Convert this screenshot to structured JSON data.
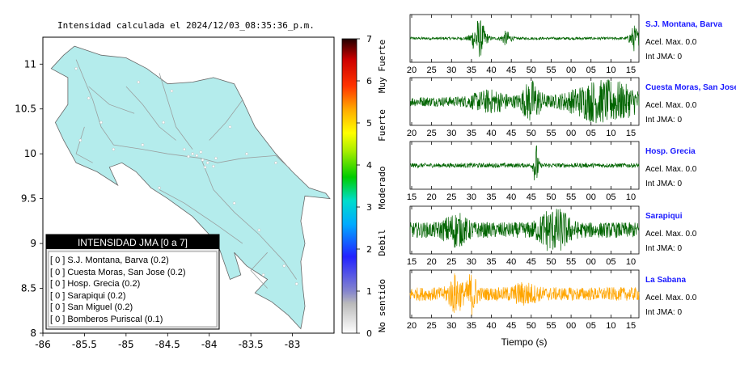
{
  "map": {
    "title": "Intensidad calculada el 2024/12/03_08:35:36_p.m.",
    "x_ticks": [
      "-86",
      "-85.5",
      "-85",
      "-84.5",
      "-84",
      "-83.5",
      "-83"
    ],
    "y_ticks": [
      "11",
      "10.5",
      "10",
      "9.5",
      "9",
      "8.5",
      "8"
    ],
    "xlim": [
      -86,
      -82.5
    ],
    "ylim": [
      8,
      11.3
    ],
    "land_color": "#b4ecec",
    "legend": {
      "title": "INTENSIDAD JMA [0 a 7]",
      "items": [
        {
          "text": "[ 0 ]  S.J. Montana, Barva (0.2)"
        },
        {
          "text": "[ 0 ]  Cuesta Moras, San Jose (0.2)"
        },
        {
          "text": "[ 0 ]  Hosp. Grecia (0.2)"
        },
        {
          "text": "[ 0 ]  Sarapiqui (0.2)"
        },
        {
          "text": "[ 0 ]  San Miguel (0.2)"
        },
        {
          "text": "[ 0 ]  Bomberos Puriscal (0.1)"
        }
      ]
    }
  },
  "colorbar": {
    "ticks": [
      "7",
      "6",
      "5",
      "4",
      "3",
      "2",
      "1",
      "0"
    ],
    "categories": [
      "Muy Fuerte",
      "Fuerte",
      "Moderado",
      "Debil",
      "No sentido"
    ]
  },
  "chart_data": [
    {
      "type": "line",
      "station": "S.J. Montana, Barva",
      "acel": "Acel. Max. 0.0",
      "int": "Int JMA: 0",
      "color": "#006400",
      "x_ticks": [
        "20",
        "25",
        "30",
        "35",
        "40",
        "45",
        "50",
        "55",
        "00",
        "05",
        "10",
        "15"
      ],
      "bursts": [
        {
          "at": 0.3,
          "amp": 0.85,
          "width": 0.03
        },
        {
          "at": 0.42,
          "amp": 0.3,
          "width": 0.02
        },
        {
          "at": 0.98,
          "amp": 0.55,
          "width": 0.02
        }
      ],
      "noise": 0.06
    },
    {
      "type": "line",
      "station": "Cuesta Moras, San Jose",
      "acel": "Acel. Max. 0.0",
      "int": "Int JMA: 0",
      "color": "#006400",
      "x_ticks": [
        "20",
        "25",
        "30",
        "35",
        "40",
        "45",
        "50",
        "55",
        "00",
        "05",
        "10",
        "15"
      ],
      "bursts": [
        {
          "at": 0.53,
          "amp": 0.8,
          "width": 0.04
        },
        {
          "at": 0.85,
          "amp": 0.85,
          "width": 0.15
        },
        {
          "at": 0.35,
          "amp": 0.35,
          "width": 0.08
        }
      ],
      "noise": 0.22
    },
    {
      "type": "line",
      "station": "Hosp. Grecia",
      "acel": "Acel. Max. 0.0",
      "int": "Int JMA: 0",
      "color": "#006400",
      "x_ticks": [
        "15",
        "20",
        "25",
        "30",
        "35",
        "40",
        "45",
        "50",
        "55",
        "00",
        "05",
        "10"
      ],
      "bursts": [
        {
          "at": 0.55,
          "amp": 1.0,
          "width": 0.01
        }
      ],
      "noise": 0.1
    },
    {
      "type": "line",
      "station": "Sarapiqui",
      "acel": "Acel. Max. 0.0",
      "int": "Int JMA: 0",
      "color": "#006400",
      "x_ticks": [
        "15",
        "20",
        "25",
        "30",
        "35",
        "40",
        "45",
        "50",
        "55",
        "00",
        "05",
        "10"
      ],
      "bursts": [
        {
          "at": 0.63,
          "amp": 0.9,
          "width": 0.06
        },
        {
          "at": 0.2,
          "amp": 0.5,
          "width": 0.05
        }
      ],
      "noise": 0.35
    },
    {
      "type": "line",
      "station": "La Sabana",
      "acel": "Acel. Max. 0.0",
      "int": "Int JMA: 0",
      "color": "#ffa500",
      "x_ticks": [
        "20",
        "25",
        "30",
        "35",
        "40",
        "45",
        "50",
        "55",
        "00",
        "05",
        "10",
        "15"
      ],
      "bursts": [
        {
          "at": 0.2,
          "amp": 0.7,
          "width": 0.03
        },
        {
          "at": 0.27,
          "amp": 0.9,
          "width": 0.02
        },
        {
          "at": 0.5,
          "amp": 0.3,
          "width": 0.05
        }
      ],
      "noise": 0.3
    }
  ],
  "xlabel": "Tiempo (s)"
}
